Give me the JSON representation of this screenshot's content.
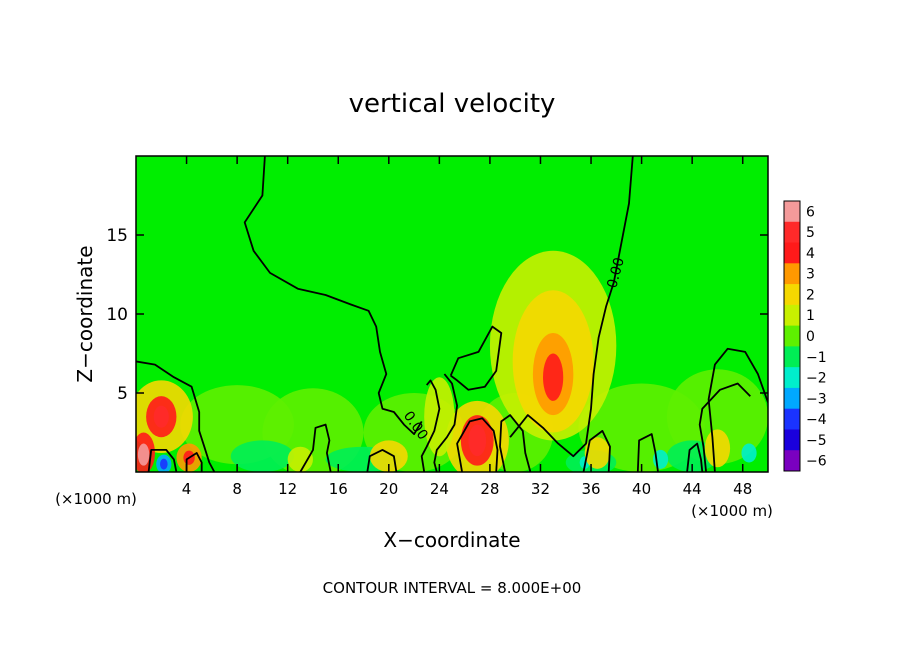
{
  "chart_data": {
    "type": "heatmap",
    "title": "vertical velocity",
    "xlabel": "X−coordinate",
    "ylabel": "Z−coordinate",
    "x_unit_left": "(×1000 m)",
    "x_unit_right": "(×1000 m)",
    "xlim": [
      0,
      50
    ],
    "ylim": [
      0,
      20
    ],
    "x_ticks": [
      4,
      8,
      12,
      16,
      20,
      24,
      28,
      32,
      36,
      40,
      44,
      48
    ],
    "x_tick_labels": [
      "4",
      "8",
      "12",
      "16",
      "20",
      "24",
      "28",
      "32",
      "36",
      "40",
      "44",
      "48"
    ],
    "y_ticks": [
      5,
      10,
      15
    ],
    "y_tick_labels": [
      "5",
      "10",
      "15"
    ],
    "contour_labels": [
      "0.00",
      "0.00"
    ],
    "contour_interval_text": "CONTOUR INTERVAL = 8.000E+00",
    "colorbar": {
      "min": -6,
      "max": 6,
      "levels": [
        6,
        5,
        4,
        3,
        2,
        1,
        0,
        -1,
        -2,
        -3,
        -4,
        -5,
        -6
      ],
      "level_labels": [
        "6",
        "5",
        "4",
        "3",
        "2",
        "1",
        "0",
        "−1",
        "−2",
        "−3",
        "−4",
        "−5",
        "−6"
      ],
      "colors": [
        "#f49a9a",
        "#ff2a2a",
        "#ff1a1a",
        "#ff9900",
        "#f5d800",
        "#c8f000",
        "#5ef000",
        "#00ee55",
        "#00eecc",
        "#00a8ff",
        "#1a33ff",
        "#1a00dd",
        "#7a00c0"
      ]
    },
    "features": [
      {
        "name": "updraft-core-33km",
        "x": 33,
        "z": 6,
        "value": 3
      },
      {
        "name": "updraft-27km",
        "x": 27,
        "z": 2,
        "value": 5
      },
      {
        "name": "updraft-2km",
        "x": 2,
        "z": 3.5,
        "value": 5
      },
      {
        "name": "updraft-1km",
        "x": 0.6,
        "z": 1,
        "value": 6
      },
      {
        "name": "updraft-4km",
        "x": 4,
        "z": 0.8,
        "value": 4
      },
      {
        "name": "downdraft-2km",
        "x": 2,
        "z": 0.5,
        "value": -5
      },
      {
        "name": "downdraft-41km",
        "x": 41.5,
        "z": 0.8,
        "value": -3
      },
      {
        "name": "downdraft-48km",
        "x": 48.5,
        "z": 1.2,
        "value": -3
      }
    ]
  }
}
